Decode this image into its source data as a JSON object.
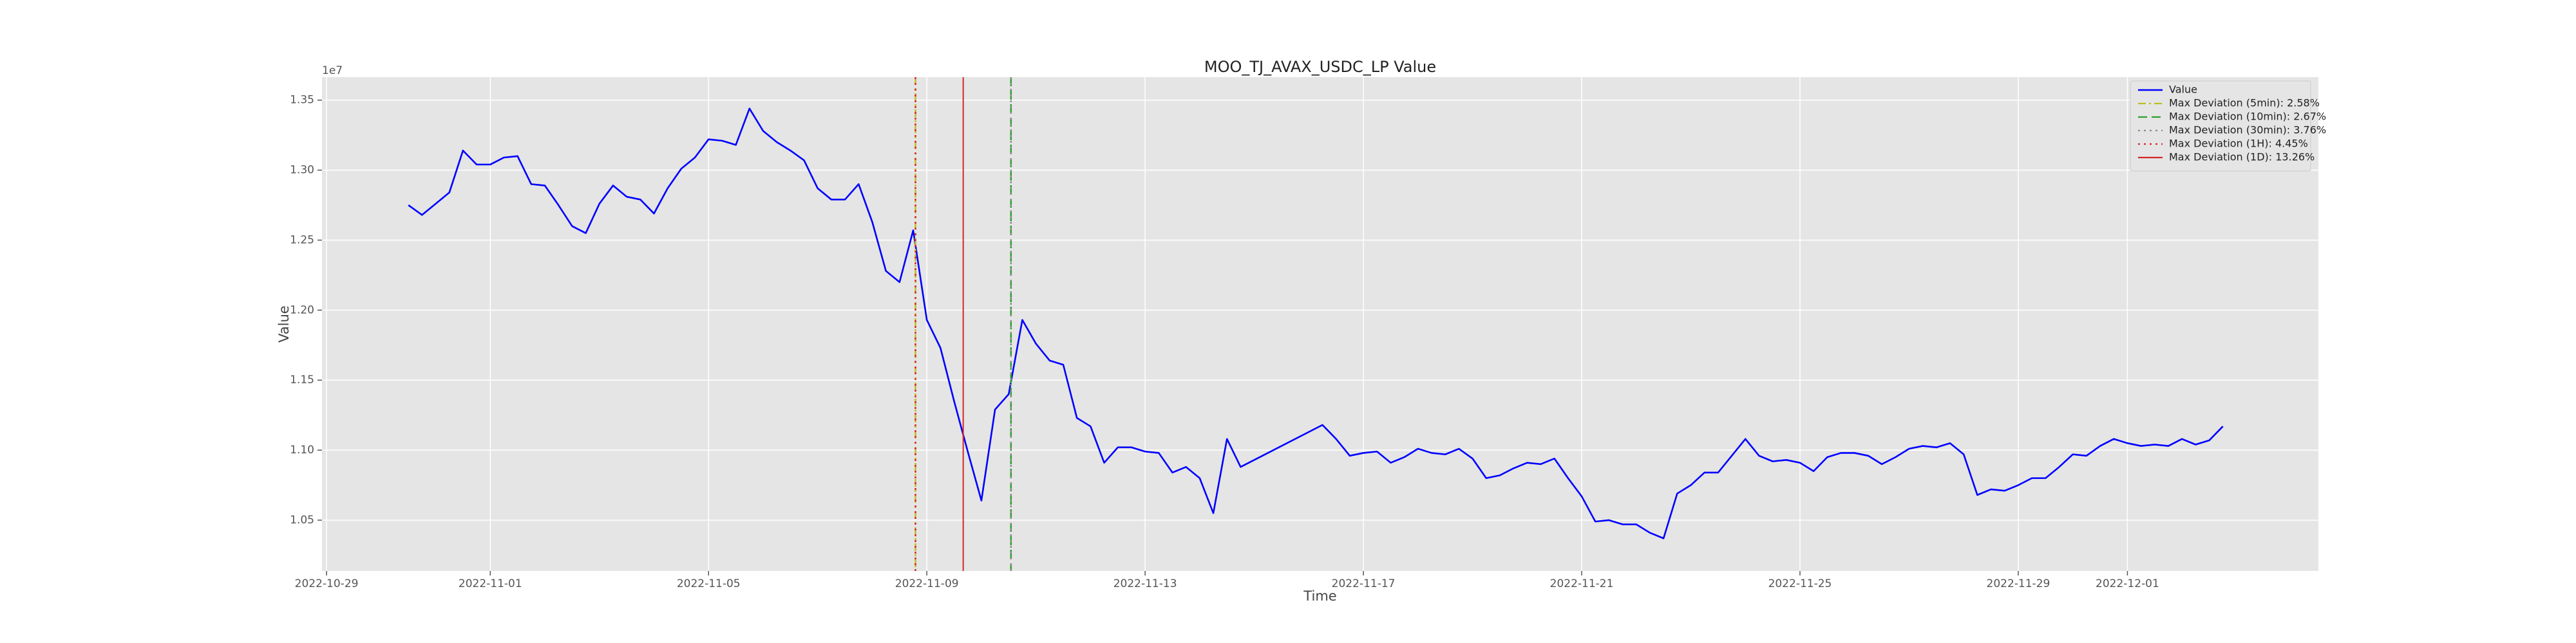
{
  "chart_data": {
    "type": "line",
    "title": "MOO_TJ_AVAX_USDC_LP Value",
    "xlabel": "Time",
    "ylabel": "Value",
    "y_offset_label": "1e7",
    "grid": true,
    "legend": "upper right",
    "xlim": [
      "2022-10-28 22:00",
      "2022-12-04 12:00"
    ],
    "xticks": [
      "2022-10-29",
      "2022-11-01",
      "2022-11-05",
      "2022-11-09",
      "2022-11-13",
      "2022-11-17",
      "2022-11-21",
      "2022-11-25",
      "2022-11-29",
      "2022-12-01"
    ],
    "ylim": [
      1.0137,
      1.3664
    ],
    "yticks": [
      1.05,
      {
        "value": 1.1,
        "label": "1.10"
      },
      1.15,
      {
        "value": 1.2,
        "label": "1.20"
      },
      1.25,
      {
        "value": 1.3,
        "label": "1.30"
      },
      1.35
    ],
    "x": [
      "2022-10-30 12:00",
      "2022-10-30 18:00",
      "2022-10-31 00:00",
      "2022-10-31 06:00",
      "2022-10-31 12:00",
      "2022-10-31 18:00",
      "2022-11-01 00:00",
      "2022-11-01 06:00",
      "2022-11-01 12:00",
      "2022-11-01 18:00",
      "2022-11-02 00:00",
      "2022-11-02 06:00",
      "2022-11-02 12:00",
      "2022-11-02 18:00",
      "2022-11-03 00:00",
      "2022-11-03 06:00",
      "2022-11-03 12:00",
      "2022-11-03 18:00",
      "2022-11-04 00:00",
      "2022-11-04 06:00",
      "2022-11-04 12:00",
      "2022-11-04 18:00",
      "2022-11-05 00:00",
      "2022-11-05 06:00",
      "2022-11-05 12:00",
      "2022-11-05 18:00",
      "2022-11-06 00:00",
      "2022-11-06 06:00",
      "2022-11-06 12:00",
      "2022-11-06 18:00",
      "2022-11-07 00:00",
      "2022-11-07 06:00",
      "2022-11-07 12:00",
      "2022-11-07 18:00",
      "2022-11-08 00:00",
      "2022-11-08 06:00",
      "2022-11-08 12:00",
      "2022-11-08 18:00",
      "2022-11-09 00:00",
      "2022-11-09 06:00",
      "2022-11-09 12:00",
      "2022-11-09 18:00",
      "2022-11-10 00:00",
      "2022-11-10 06:00",
      "2022-11-10 12:00",
      "2022-11-10 18:00",
      "2022-11-11 00:00",
      "2022-11-11 06:00",
      "2022-11-11 12:00",
      "2022-11-11 18:00",
      "2022-11-12 00:00",
      "2022-11-12 06:00",
      "2022-11-12 12:00",
      "2022-11-12 18:00",
      "2022-11-13 00:00",
      "2022-11-13 06:00",
      "2022-11-13 12:00",
      "2022-11-13 18:00",
      "2022-11-14 00:00",
      "2022-11-14 06:00",
      "2022-11-14 12:00",
      "2022-11-14 18:00",
      "2022-11-16 06:00",
      "2022-11-16 12:00",
      "2022-11-16 18:00",
      "2022-11-17 00:00",
      "2022-11-17 06:00",
      "2022-11-17 12:00",
      "2022-11-17 18:00",
      "2022-11-18 00:00",
      "2022-11-18 06:00",
      "2022-11-18 12:00",
      "2022-11-18 18:00",
      "2022-11-19 00:00",
      "2022-11-19 06:00",
      "2022-11-19 12:00",
      "2022-11-19 18:00",
      "2022-11-20 00:00",
      "2022-11-20 06:00",
      "2022-11-20 12:00",
      "2022-11-20 18:00",
      "2022-11-21 00:00",
      "2022-11-21 06:00",
      "2022-11-21 12:00",
      "2022-11-21 18:00",
      "2022-11-22 00:00",
      "2022-11-22 06:00",
      "2022-11-22 12:00",
      "2022-11-22 18:00",
      "2022-11-23 00:00",
      "2022-11-23 06:00",
      "2022-11-23 12:00",
      "2022-11-23 18:00",
      "2022-11-24 00:00",
      "2022-11-24 06:00",
      "2022-11-24 12:00",
      "2022-11-24 18:00",
      "2022-11-25 00:00",
      "2022-11-25 06:00",
      "2022-11-25 12:00",
      "2022-11-25 18:00",
      "2022-11-26 00:00",
      "2022-11-26 06:00",
      "2022-11-26 12:00",
      "2022-11-26 18:00",
      "2022-11-27 00:00",
      "2022-11-27 06:00",
      "2022-11-27 12:00",
      "2022-11-27 18:00",
      "2022-11-28 00:00",
      "2022-11-28 06:00",
      "2022-11-28 12:00",
      "2022-11-28 18:00",
      "2022-11-29 00:00",
      "2022-11-29 06:00",
      "2022-11-29 12:00",
      "2022-11-29 18:00",
      "2022-11-30 00:00",
      "2022-11-30 06:00",
      "2022-11-30 12:00",
      "2022-11-30 18:00",
      "2022-12-01 00:00",
      "2022-12-01 06:00",
      "2022-12-01 12:00",
      "2022-12-01 18:00",
      "2022-12-02 00:00",
      "2022-12-02 06:00",
      "2022-12-02 12:00",
      "2022-12-02 18:00"
    ],
    "series": [
      {
        "name": "Value",
        "color": "#0000ff",
        "values": [
          1.275,
          1.268,
          1.276,
          1.284,
          1.314,
          1.304,
          1.304,
          1.309,
          1.31,
          1.29,
          1.289,
          1.275,
          1.26,
          1.255,
          1.276,
          1.289,
          1.281,
          1.279,
          1.269,
          1.287,
          1.301,
          1.309,
          1.322,
          1.321,
          1.318,
          1.344,
          1.328,
          1.32,
          1.314,
          1.307,
          1.287,
          1.279,
          1.279,
          1.29,
          1.263,
          1.228,
          1.22,
          1.257,
          1.193,
          1.173,
          1.135,
          1.099,
          1.064,
          1.129,
          1.14,
          1.193,
          1.176,
          1.164,
          1.161,
          1.123,
          1.117,
          1.091,
          1.102,
          1.102,
          1.099,
          1.098,
          1.084,
          1.088,
          1.08,
          1.055,
          1.108,
          1.088,
          1.118,
          1.108,
          1.096,
          1.098,
          1.099,
          1.091,
          1.095,
          1.101,
          1.098,
          1.097,
          1.101,
          1.094,
          1.08,
          1.082,
          1.087,
          1.091,
          1.09,
          1.094,
          1.08,
          1.067,
          1.049,
          1.05,
          1.047,
          1.047,
          1.041,
          1.037,
          1.069,
          1.075,
          1.084,
          1.084,
          1.096,
          1.108,
          1.096,
          1.092,
          1.093,
          1.091,
          1.085,
          1.095,
          1.098,
          1.098,
          1.096,
          1.09,
          1.095,
          1.101,
          1.103,
          1.102,
          1.105,
          1.097,
          1.068,
          1.072,
          1.071,
          1.075,
          1.08,
          1.08,
          1.088,
          1.097,
          1.096,
          1.103,
          1.108,
          1.105,
          1.103,
          1.104,
          1.103,
          1.108,
          1.104,
          1.107,
          1.117
        ]
      }
    ],
    "vlines": [
      {
        "name": "Max Deviation (5min): 2.58%",
        "color": "#bcbd22",
        "linestyle": "dashdot",
        "x": "2022-11-08 19:00"
      },
      {
        "name": "Max Deviation (10min): 2.67%",
        "color": "#2ca02c",
        "linestyle": "dashed",
        "x": "2022-11-10 13:00"
      },
      {
        "name": "Max Deviation (30min): 3.76%",
        "color": "#8c8c8c",
        "linestyle": "dotted",
        "x": "2022-11-10 13:00"
      },
      {
        "name": "Max Deviation (1H): 4.45%",
        "color": "#d62728",
        "linestyle": "dotted",
        "x": "2022-11-08 19:00"
      },
      {
        "name": "Max Deviation (1D): 13.26%",
        "color": "#d62728",
        "linestyle": "solid",
        "x": "2022-11-09 16:00"
      }
    ]
  }
}
